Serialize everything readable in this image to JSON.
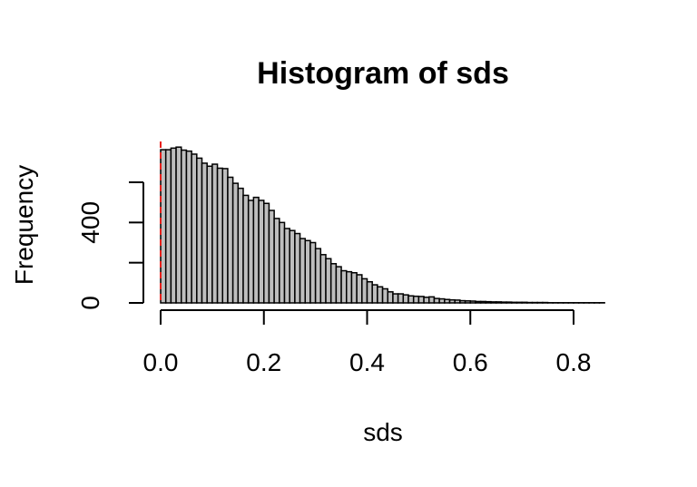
{
  "chart_data": {
    "type": "bar",
    "title": "Histogram of sds",
    "xlabel": "sds",
    "ylabel": "Frequency",
    "xlim": [
      0,
      0.86
    ],
    "ylim": [
      0,
      800
    ],
    "x_ticks": [
      0.0,
      0.2,
      0.4,
      0.6,
      0.8
    ],
    "x_tick_labels": [
      "0.0",
      "0.2",
      "0.4",
      "0.6",
      "0.8"
    ],
    "y_ticks": [
      0,
      200,
      400,
      600
    ],
    "y_tick_labels": [
      "0",
      "",
      "400",
      ""
    ],
    "bin_width": 0.01,
    "bin_start": 0.0,
    "values": [
      762,
      762,
      770,
      775,
      760,
      755,
      740,
      720,
      695,
      680,
      690,
      670,
      668,
      625,
      595,
      570,
      535,
      510,
      525,
      510,
      495,
      460,
      420,
      400,
      370,
      360,
      345,
      320,
      310,
      300,
      270,
      240,
      220,
      195,
      180,
      160,
      155,
      150,
      140,
      120,
      105,
      90,
      80,
      70,
      55,
      45,
      45,
      40,
      35,
      33,
      32,
      28,
      30,
      22,
      20,
      17,
      15,
      14,
      11,
      10,
      9,
      7,
      7,
      6,
      5,
      5,
      4,
      4,
      3,
      3,
      3,
      2,
      2,
      2,
      2,
      1,
      1,
      1,
      1,
      1,
      1,
      1,
      1,
      1,
      1,
      1
    ],
    "bar_color": "#bebebe",
    "reference_line": {
      "x": 0.0,
      "color": "#e8201c",
      "style": "dashed"
    },
    "grid": false,
    "legend": "none"
  }
}
